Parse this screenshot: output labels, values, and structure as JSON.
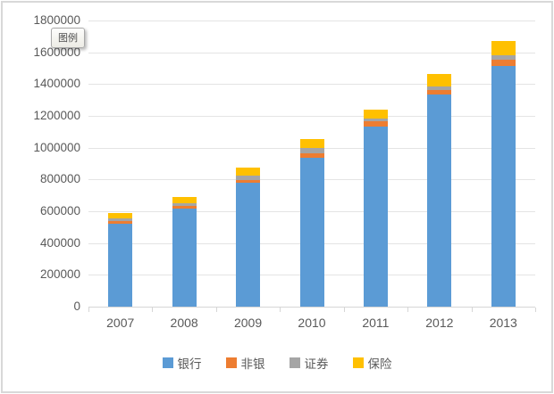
{
  "tooltip": {
    "text": "图例"
  },
  "colors": {
    "background": "#FFFFFF",
    "chart_border": "#D8D8D8",
    "gridline": "#E4E4E4",
    "axis_line": "#D6D6D6",
    "label_text": "#595959"
  },
  "chart_data": {
    "type": "bar",
    "stacked": true,
    "title": "",
    "xlabel": "",
    "ylabel": "",
    "grid": true,
    "legend_position": "bottom",
    "ylim": [
      0,
      1800000
    ],
    "y_tick_step": 200000,
    "y_tick_labels": [
      "0",
      "200000",
      "400000",
      "600000",
      "800000",
      "1000000",
      "1200000",
      "1400000",
      "1600000",
      "1800000"
    ],
    "categories": [
      "2007",
      "2008",
      "2009",
      "2010",
      "2011",
      "2012",
      "2013"
    ],
    "series": [
      {
        "name": "银行",
        "color": "#5B9BD5",
        "values": [
          520000,
          615000,
          780000,
          939000,
          1133000,
          1334000,
          1513000
        ]
      },
      {
        "name": "非银",
        "color": "#ED7D31",
        "values": [
          17000,
          19000,
          19000,
          23000,
          34000,
          28000,
          38000
        ]
      },
      {
        "name": "证券",
        "color": "#A5A5A5",
        "values": [
          17000,
          17000,
          28000,
          34000,
          19000,
          24000,
          30000
        ]
      },
      {
        "name": "保险",
        "color": "#FFC000",
        "values": [
          34000,
          41000,
          47000,
          56000,
          55000,
          79000,
          90000
        ]
      }
    ]
  }
}
